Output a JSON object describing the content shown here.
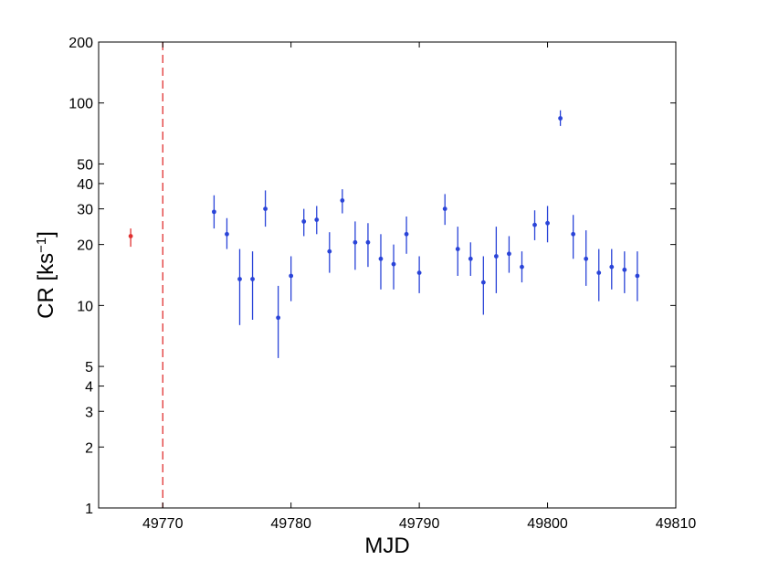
{
  "chart_data": {
    "type": "scatter",
    "xlabel": "MJD",
    "ylabel": "CR [ks",
    "ylabel_superscript": "−1",
    "ylabel_suffix": "]",
    "xlim": [
      49765,
      49810
    ],
    "ylim": [
      1,
      200
    ],
    "yscale": "log",
    "grid": false,
    "x_ticks": [
      49770,
      49780,
      49790,
      49800,
      49810
    ],
    "x_tick_labels": [
      "49770",
      "49780",
      "49790",
      "49800",
      "49810"
    ],
    "y_ticks": [
      1,
      2,
      3,
      4,
      5,
      10,
      20,
      30,
      40,
      50,
      100,
      200
    ],
    "y_tick_labels": [
      "1",
      "2",
      "3",
      "4",
      "5",
      "10",
      "20",
      "30",
      "40",
      "50",
      "100",
      "200"
    ],
    "vline": {
      "x": 49770,
      "style": "dashed",
      "color": "#e03030"
    },
    "series": [
      {
        "color": "#e03030",
        "points": [
          {
            "x": 49767.5,
            "y": 22,
            "ylo": 19.5,
            "yhi": 24
          }
        ]
      },
      {
        "color": "#2a44d8",
        "points": [
          {
            "x": 49774,
            "y": 29,
            "ylo": 24,
            "yhi": 35
          },
          {
            "x": 49775,
            "y": 22.5,
            "ylo": 19,
            "yhi": 27
          },
          {
            "x": 49776,
            "y": 13.5,
            "ylo": 8,
            "yhi": 19
          },
          {
            "x": 49777,
            "y": 13.5,
            "ylo": 8.5,
            "yhi": 18.5
          },
          {
            "x": 49778,
            "y": 30,
            "ylo": 24.5,
            "yhi": 37
          },
          {
            "x": 49779,
            "y": 8.7,
            "ylo": 5.5,
            "yhi": 12.5
          },
          {
            "x": 49780,
            "y": 14,
            "ylo": 10.5,
            "yhi": 17.5
          },
          {
            "x": 49781,
            "y": 26,
            "ylo": 22,
            "yhi": 30
          },
          {
            "x": 49782,
            "y": 26.5,
            "ylo": 22.5,
            "yhi": 31
          },
          {
            "x": 49783,
            "y": 18.5,
            "ylo": 14.5,
            "yhi": 23
          },
          {
            "x": 49784,
            "y": 33,
            "ylo": 28.5,
            "yhi": 37.5
          },
          {
            "x": 49785,
            "y": 20.5,
            "ylo": 15,
            "yhi": 26
          },
          {
            "x": 49786,
            "y": 20.5,
            "ylo": 15.5,
            "yhi": 25.5
          },
          {
            "x": 49787,
            "y": 17,
            "ylo": 12,
            "yhi": 22.5
          },
          {
            "x": 49788,
            "y": 16,
            "ylo": 12,
            "yhi": 20
          },
          {
            "x": 49789,
            "y": 22.5,
            "ylo": 18,
            "yhi": 27.5
          },
          {
            "x": 49790,
            "y": 14.5,
            "ylo": 11.5,
            "yhi": 17.5
          },
          {
            "x": 49792,
            "y": 30,
            "ylo": 25,
            "yhi": 35.5
          },
          {
            "x": 49793,
            "y": 19,
            "ylo": 14,
            "yhi": 24.5
          },
          {
            "x": 49794,
            "y": 17,
            "ylo": 14,
            "yhi": 20.5
          },
          {
            "x": 49795,
            "y": 13,
            "ylo": 9,
            "yhi": 17.5
          },
          {
            "x": 49796,
            "y": 17.5,
            "ylo": 11.5,
            "yhi": 24.5
          },
          {
            "x": 49797,
            "y": 18,
            "ylo": 14.5,
            "yhi": 22
          },
          {
            "x": 49798,
            "y": 15.5,
            "ylo": 13,
            "yhi": 18.5
          },
          {
            "x": 49799,
            "y": 25,
            "ylo": 21,
            "yhi": 29.5
          },
          {
            "x": 49800,
            "y": 25.5,
            "ylo": 20.5,
            "yhi": 31
          },
          {
            "x": 49801,
            "y": 84,
            "ylo": 77,
            "yhi": 92
          },
          {
            "x": 49802,
            "y": 22.5,
            "ylo": 17,
            "yhi": 28
          },
          {
            "x": 49803,
            "y": 17,
            "ylo": 12.5,
            "yhi": 23.5
          },
          {
            "x": 49804,
            "y": 14.5,
            "ylo": 10.5,
            "yhi": 19
          },
          {
            "x": 49805,
            "y": 15.5,
            "ylo": 12,
            "yhi": 19
          },
          {
            "x": 49806,
            "y": 15,
            "ylo": 11.5,
            "yhi": 18.5
          },
          {
            "x": 49807,
            "y": 14,
            "ylo": 10.5,
            "yhi": 18.5
          }
        ]
      }
    ]
  }
}
